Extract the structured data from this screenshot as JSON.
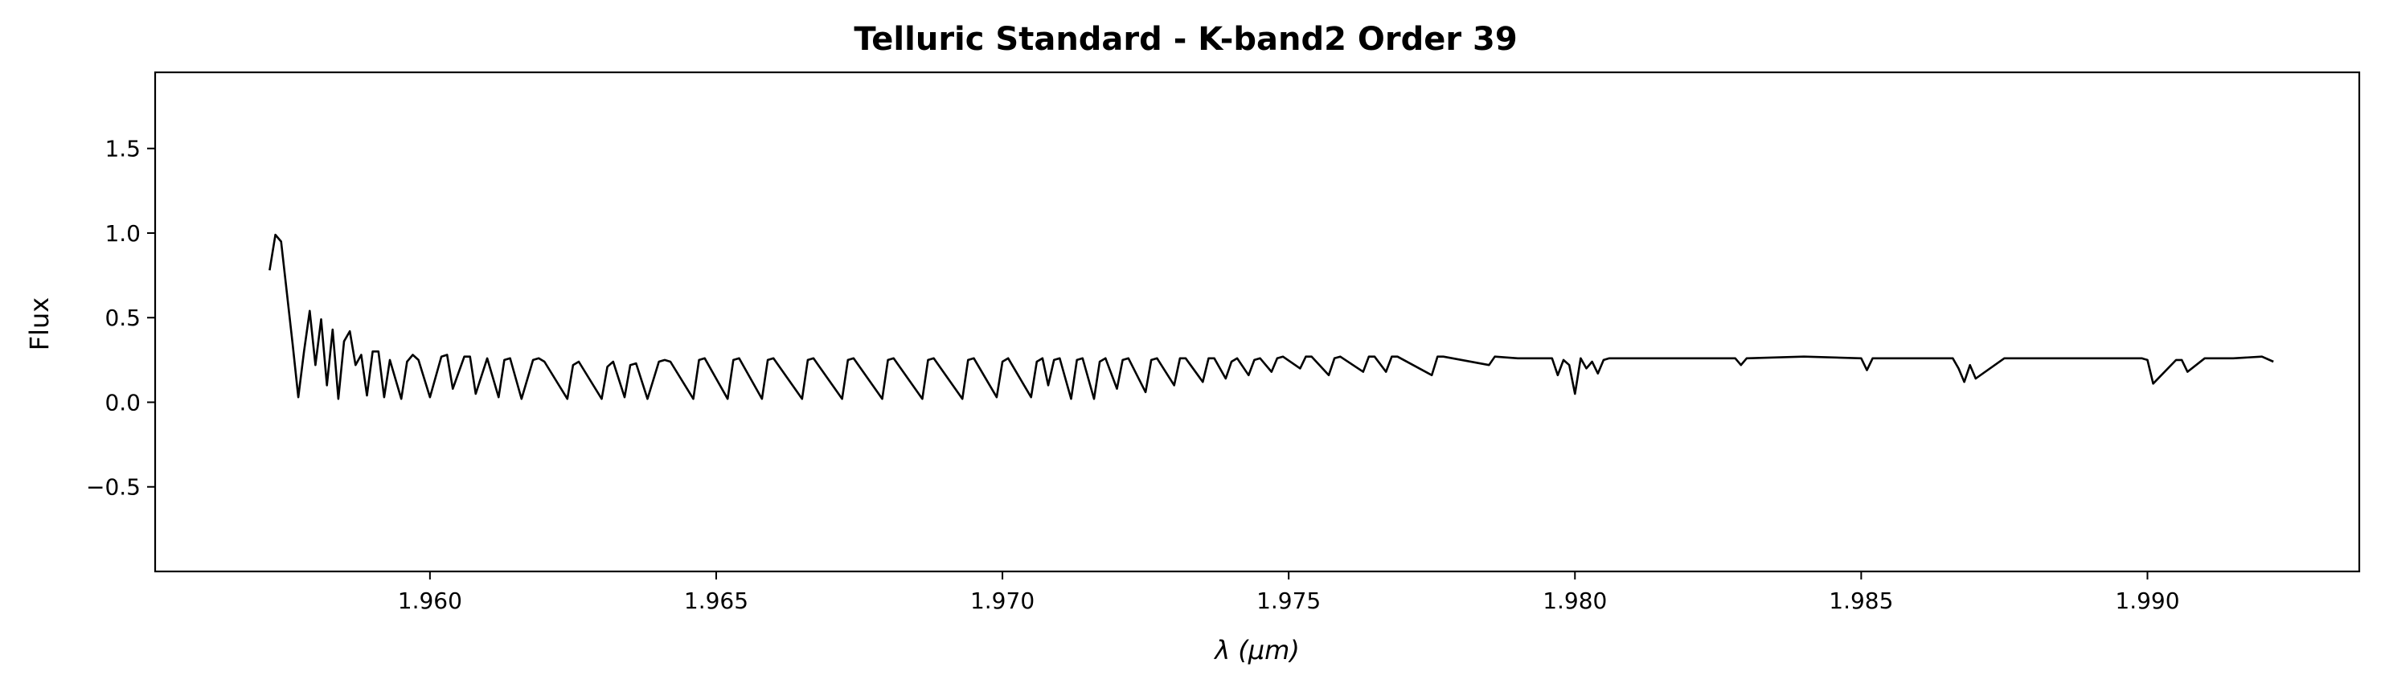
{
  "chart_data": {
    "type": "line",
    "title": "Telluric Standard - K-band2 Order 39",
    "xlabel": "λ (μm)",
    "ylabel": "Flux",
    "xlim": [
      1.9552,
      1.9937
    ],
    "ylim": [
      -1.0,
      1.95
    ],
    "xticks": [
      "1.960",
      "1.965",
      "1.970",
      "1.975",
      "1.980",
      "1.985",
      "1.990"
    ],
    "yticks": [
      "−0.5",
      "0.0",
      "0.5",
      "1.0",
      "1.5"
    ],
    "grid": false,
    "line_color": "#000000",
    "series": [
      {
        "x": [
          1.9572,
          1.9573,
          1.9574,
          1.9575,
          1.9576,
          1.9577,
          1.9578,
          1.9579,
          1.958,
          1.9581,
          1.9582,
          1.9583,
          1.9584,
          1.9585,
          1.9586,
          1.9587,
          1.9588,
          1.9589,
          1.959,
          1.9591,
          1.9592,
          1.9593,
          1.9595,
          1.9596,
          1.9597,
          1.9598,
          1.96,
          1.9602,
          1.9603,
          1.9604,
          1.9606,
          1.9607,
          1.9608,
          1.961,
          1.9612,
          1.9613,
          1.9614,
          1.9616,
          1.9618,
          1.9619,
          1.962,
          1.9624,
          1.9625,
          1.9626,
          1.963,
          1.9631,
          1.9632,
          1.9634,
          1.9635,
          1.9636,
          1.9638,
          1.964,
          1.9641,
          1.9642,
          1.9646,
          1.9647,
          1.9648,
          1.9652,
          1.9653,
          1.9654,
          1.9658,
          1.9659,
          1.966,
          1.9665,
          1.9666,
          1.9667,
          1.9672,
          1.9673,
          1.9674,
          1.9679,
          1.968,
          1.9681,
          1.9686,
          1.9687,
          1.9688,
          1.9693,
          1.9694,
          1.9695,
          1.9699,
          1.97,
          1.9701,
          1.9705,
          1.9706,
          1.9707,
          1.9708,
          1.9709,
          1.971,
          1.9712,
          1.9713,
          1.9714,
          1.9716,
          1.9717,
          1.9718,
          1.972,
          1.9721,
          1.9722,
          1.9725,
          1.9726,
          1.9727,
          1.973,
          1.9731,
          1.9732,
          1.9735,
          1.9736,
          1.9737,
          1.9739,
          1.974,
          1.9741,
          1.9743,
          1.9744,
          1.9745,
          1.9747,
          1.9748,
          1.9749,
          1.9752,
          1.9753,
          1.9754,
          1.9757,
          1.9758,
          1.9759,
          1.9763,
          1.9764,
          1.9765,
          1.9767,
          1.9768,
          1.9769,
          1.9775,
          1.9776,
          1.9777,
          1.9785,
          1.9786,
          1.979,
          1.9795,
          1.9796,
          1.9797,
          1.9798,
          1.9799,
          1.98,
          1.9801,
          1.9802,
          1.9803,
          1.9804,
          1.9805,
          1.9806,
          1.981,
          1.982,
          1.9828,
          1.9829,
          1.983,
          1.984,
          1.985,
          1.9851,
          1.9852,
          1.986,
          1.9866,
          1.9867,
          1.9868,
          1.9869,
          1.987,
          1.9875,
          1.988,
          1.989,
          1.9899,
          1.99,
          1.9901,
          1.9905,
          1.9906,
          1.9907,
          1.991,
          1.9915,
          1.992,
          1.9922
        ],
        "y": [
          0.78,
          0.99,
          0.95,
          0.65,
          0.35,
          0.03,
          0.3,
          0.54,
          0.22,
          0.49,
          0.1,
          0.43,
          0.02,
          0.36,
          0.42,
          0.22,
          0.28,
          0.04,
          0.3,
          0.3,
          0.03,
          0.25,
          0.02,
          0.24,
          0.28,
          0.25,
          0.03,
          0.27,
          0.28,
          0.08,
          0.27,
          0.27,
          0.05,
          0.26,
          0.03,
          0.25,
          0.26,
          0.02,
          0.25,
          0.26,
          0.24,
          0.02,
          0.22,
          0.24,
          0.02,
          0.21,
          0.24,
          0.03,
          0.22,
          0.23,
          0.02,
          0.24,
          0.25,
          0.24,
          0.02,
          0.25,
          0.26,
          0.02,
          0.25,
          0.26,
          0.02,
          0.25,
          0.26,
          0.02,
          0.25,
          0.26,
          0.02,
          0.25,
          0.26,
          0.02,
          0.25,
          0.26,
          0.02,
          0.25,
          0.26,
          0.02,
          0.25,
          0.26,
          0.03,
          0.24,
          0.26,
          0.03,
          0.24,
          0.26,
          0.1,
          0.25,
          0.26,
          0.02,
          0.25,
          0.26,
          0.02,
          0.24,
          0.26,
          0.08,
          0.25,
          0.26,
          0.06,
          0.25,
          0.26,
          0.1,
          0.26,
          0.26,
          0.12,
          0.26,
          0.26,
          0.14,
          0.24,
          0.26,
          0.16,
          0.25,
          0.26,
          0.18,
          0.26,
          0.27,
          0.2,
          0.27,
          0.27,
          0.16,
          0.26,
          0.27,
          0.18,
          0.27,
          0.27,
          0.18,
          0.27,
          0.27,
          0.16,
          0.27,
          0.27,
          0.22,
          0.27,
          0.26,
          0.26,
          0.26,
          0.16,
          0.25,
          0.22,
          0.05,
          0.26,
          0.2,
          0.24,
          0.17,
          0.25,
          0.26,
          0.26,
          0.26,
          0.26,
          0.22,
          0.26,
          0.27,
          0.26,
          0.19,
          0.26,
          0.26,
          0.26,
          0.2,
          0.12,
          0.22,
          0.14,
          0.26,
          0.26,
          0.26,
          0.26,
          0.25,
          0.11,
          0.25,
          0.25,
          0.18,
          0.26,
          0.26,
          0.27,
          0.24
        ]
      }
    ]
  }
}
